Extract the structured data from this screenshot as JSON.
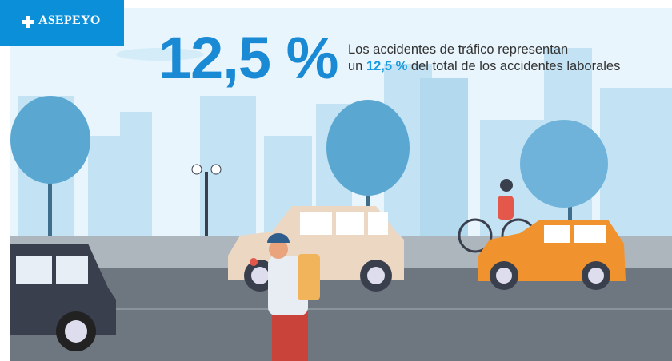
{
  "brand": {
    "name": "ASEPEYO",
    "color": "#0b8fd8",
    "icon": "cross-icon"
  },
  "headline": {
    "value": "12,5 %",
    "color": "#1a8ad4"
  },
  "subtitle": {
    "line1": "Los accidentes de tráfico representan",
    "prefix": "un",
    "highlight": "12,5 %",
    "suffix": "del total de los accidentes laborales"
  },
  "colors": {
    "sky": "#e6f4fb",
    "buildings": "#bfe1f2",
    "trees": "#5aa7d2",
    "road": "#6e7780",
    "sidewalk": "#aeb6bd",
    "car_beige": "#ecd7c3",
    "car_orange": "#f0932e",
    "van": "#3a3f4e"
  }
}
